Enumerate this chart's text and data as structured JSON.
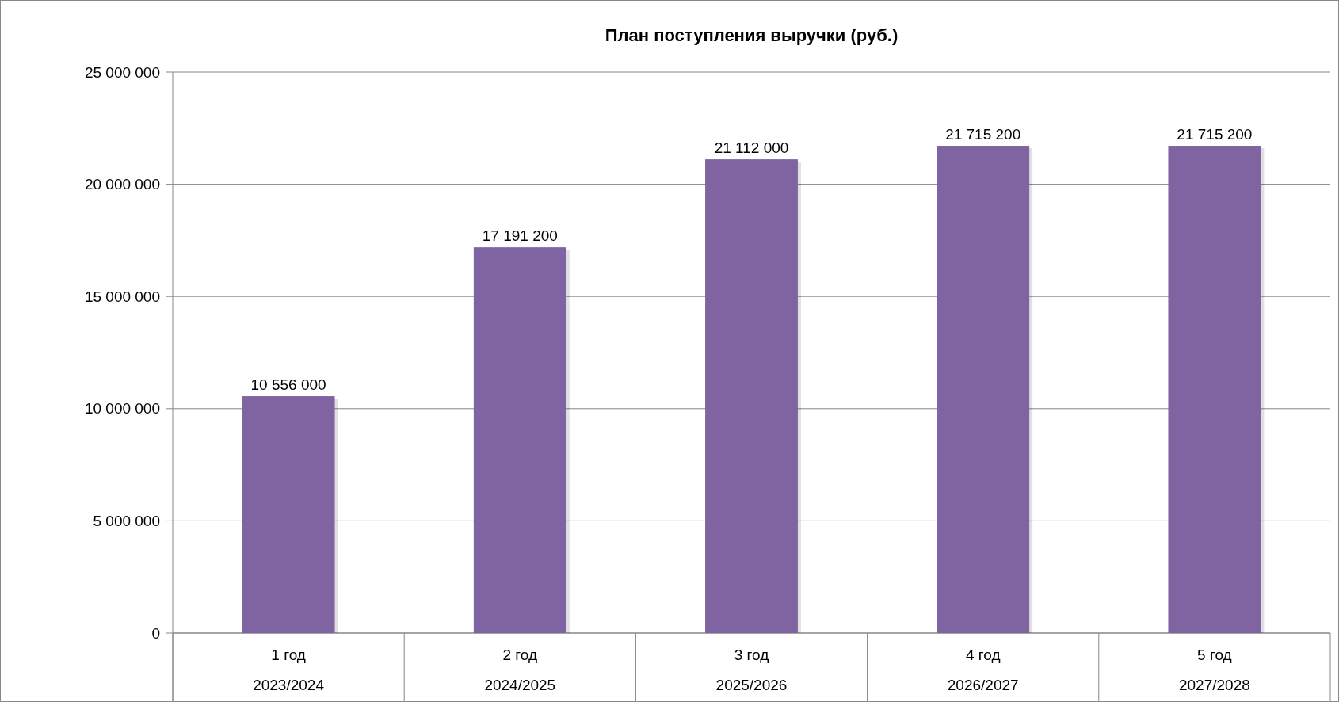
{
  "chart_data": {
    "type": "bar",
    "title": "План поступления выручки (руб.)",
    "categories": [
      "1 год\n2023/2024",
      "2 год\n2024/2025",
      "3 год\n2025/2026",
      "4 год\n2026/2027",
      "5 год\n2027/2028"
    ],
    "values": [
      10556000,
      17191200,
      21112000,
      21715200,
      21715200
    ],
    "color": "#8064a2",
    "ylim": [
      0,
      25000000
    ],
    "yticks": [
      0,
      5000000,
      10000000,
      15000000,
      20000000,
      25000000
    ],
    "grid": "y",
    "data_labels": true
  }
}
